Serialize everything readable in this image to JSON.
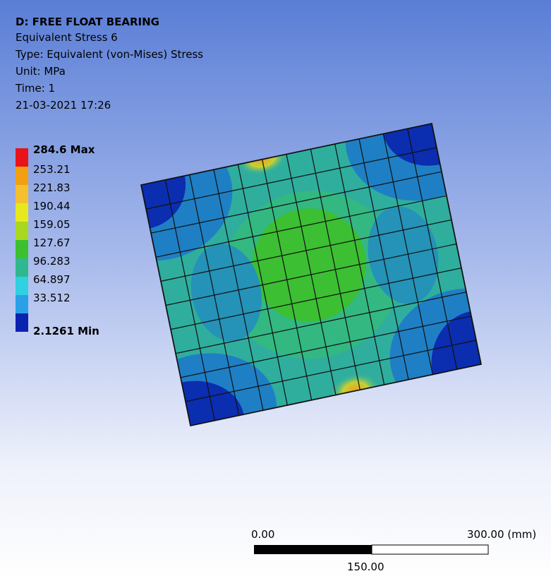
{
  "header": {
    "title": "D: FREE FLOAT BEARING",
    "lines": [
      "Equivalent Stress 6",
      "Type: Equivalent (von-Mises) Stress",
      "Unit: MPa",
      "Time: 1",
      "21-03-2021 17:26"
    ]
  },
  "legend": {
    "labels": [
      "284.6 Max",
      "253.21",
      "221.83",
      "190.44",
      "159.05",
      "127.67",
      "96.283",
      "64.897",
      "33.512",
      "2.1261 Min"
    ]
  },
  "scale_bar": {
    "start": "0.00",
    "end": "300.00 (mm)",
    "middle": "150.00"
  }
}
